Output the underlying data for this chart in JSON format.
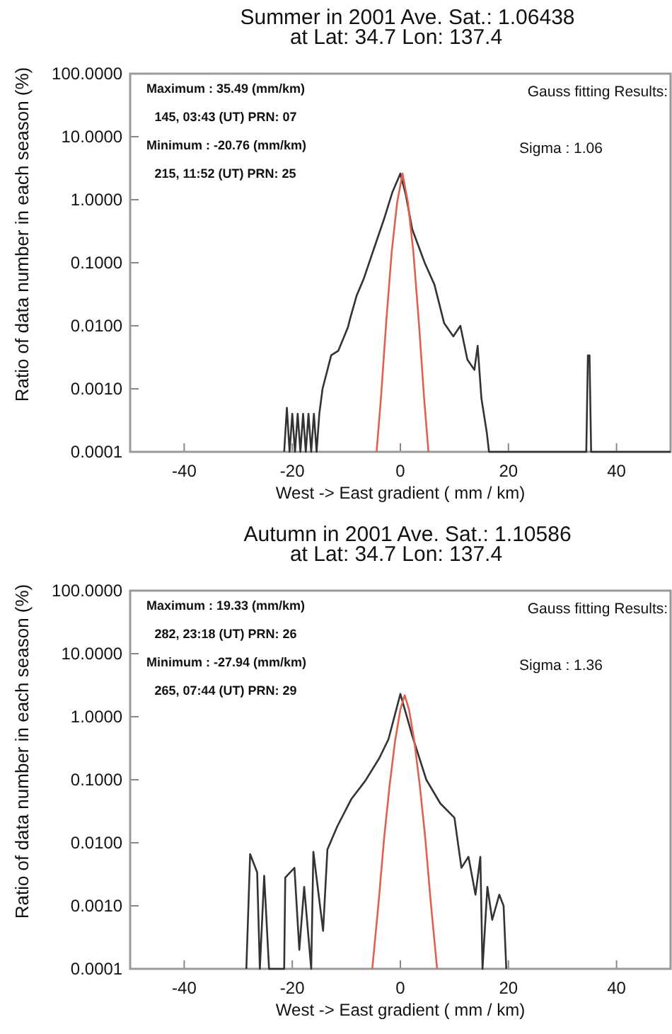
{
  "chart_data": [
    {
      "type": "line",
      "title": "Summer  in 2001  Ave. Sat.: 1.06438",
      "subtitle": "at  Lat:  34.7  Lon: 137.4",
      "xlabel": "West -> East  gradient ( mm / km)",
      "ylabel": "Ratio of data number in each season (%)",
      "log": "y",
      "xlim": [
        -50,
        50
      ],
      "xticks": [
        -40,
        -20,
        0,
        20,
        40
      ],
      "ylim": [
        0.0001,
        100
      ],
      "yticks": [
        {
          "value": 100,
          "label": "100.0000"
        },
        {
          "value": 10,
          "label": "10.0000"
        },
        {
          "value": 1,
          "label": "1.0000"
        },
        {
          "value": 0.1,
          "label": "0.1000"
        },
        {
          "value": 0.01,
          "label": "0.0100"
        },
        {
          "value": 0.001,
          "label": "0.0010"
        },
        {
          "value": 0.0001,
          "label": "0.0001"
        }
      ],
      "annotations": [
        "Maximum : 35.49 (mm/km)",
        "145, 03:43 (UT) PRN: 07",
        "Minimum : -20.76 (mm/km)",
        "215, 11:52 (UT) PRN: 25",
        "Gauss fitting Results:",
        "Sigma : 1.06"
      ],
      "series": [
        {
          "color": "#333333",
          "x": [
            -21.5,
            -21,
            -20.5,
            -20,
            -19.5,
            -19,
            -18.5,
            -18,
            -17.5,
            -17,
            -16.5,
            -16,
            -15.5,
            -15,
            -14.4,
            -12.8,
            -11.5,
            -9.7,
            -9.3,
            -8.1,
            -6.8,
            -5.2,
            -3,
            -1.5,
            0,
            1,
            2.2,
            4.5,
            6.3,
            8.1,
            9.8,
            11.1,
            12.4,
            13.7,
            14.3,
            15,
            16,
            16.4,
            34.4,
            34.7,
            35,
            35.3,
            50
          ],
          "values": [
            0.0001,
            0.0005,
            0.0001,
            0.0004,
            0.0001,
            0.0004,
            0.0001,
            0.0004,
            0.0001,
            0.0004,
            0.0001,
            0.0004,
            0.0001,
            0.0004,
            0.001,
            0.0034,
            0.004,
            0.0095,
            0.013,
            0.03,
            0.055,
            0.14,
            0.5,
            1.3,
            2.6,
            1.2,
            0.34,
            0.1,
            0.045,
            0.011,
            0.0068,
            0.01,
            0.0029,
            0.002,
            0.0048,
            0.0007,
            0.0002,
            0.0001,
            0.0001,
            0.0034,
            0.0034,
            0.0001,
            0.0001
          ]
        },
        {
          "color": "#e06050",
          "x": [
            -4.4,
            -3.6,
            -2.6,
            -1.6,
            -0.6,
            0.4,
            1.4,
            2.4,
            3.4,
            4.4,
            5.2
          ],
          "values": [
            0.0001,
            0.0007,
            0.012,
            0.15,
            0.9,
            2.6,
            0.9,
            0.15,
            0.012,
            0.0007,
            0.0001
          ]
        }
      ]
    },
    {
      "type": "line",
      "title": "Autumn  in 2001  Ave. Sat.: 1.10586",
      "subtitle": "at  Lat:  34.7  Lon: 137.4",
      "xlabel": "West -> East  gradient ( mm / km)",
      "ylabel": "Ratio of data number in each season (%)",
      "log": "y",
      "xlim": [
        -50,
        50
      ],
      "xticks": [
        -40,
        -20,
        0,
        20,
        40
      ],
      "ylim": [
        0.0001,
        100
      ],
      "yticks": [
        {
          "value": 100,
          "label": "100.0000"
        },
        {
          "value": 10,
          "label": "10.0000"
        },
        {
          "value": 1,
          "label": "1.0000"
        },
        {
          "value": 0.1,
          "label": "0.1000"
        },
        {
          "value": 0.01,
          "label": "0.0100"
        },
        {
          "value": 0.001,
          "label": "0.0010"
        },
        {
          "value": 0.0001,
          "label": "0.0001"
        }
      ],
      "annotations": [
        "Maximum : 19.33 (mm/km)",
        "282, 23:18 (UT) PRN: 26",
        "Minimum : -27.94 (mm/km)",
        "265, 07:44 (UT) PRN: 29",
        "Gauss fitting Results:",
        "Sigma : 1.36"
      ],
      "series": [
        {
          "color": "#333333",
          "x": [
            -28.5,
            -27.8,
            -26.5,
            -26,
            -25.2,
            -24.3,
            -21.5,
            -21.3,
            -19.6,
            -18.7,
            -17.8,
            -16.5,
            -16.1,
            -14.3,
            -13.5,
            -11.7,
            -9.1,
            -6.5,
            -3.9,
            -2.2,
            0,
            2.2,
            4.8,
            7.4,
            10,
            11.3,
            12.6,
            13.9,
            14.8,
            15.2,
            16.1,
            17,
            18.3,
            19.1,
            19.6
          ],
          "values": [
            0.0001,
            0.0066,
            0.0034,
            0.0001,
            0.003,
            0.0001,
            0.0001,
            0.0028,
            0.004,
            0.0002,
            0.002,
            0.0001,
            0.0072,
            0.0004,
            0.0078,
            0.018,
            0.049,
            0.096,
            0.22,
            0.44,
            2.3,
            0.5,
            0.1,
            0.042,
            0.025,
            0.004,
            0.006,
            0.0015,
            0.006,
            0.0001,
            0.002,
            0.0006,
            0.0015,
            0.001,
            0.0001
          ]
        },
        {
          "color": "#e06050",
          "x": [
            -5.2,
            -4,
            -3,
            -2,
            -1,
            0,
            0.8,
            1.6,
            2.6,
            3.6,
            4.6,
            5.6,
            6.8
          ],
          "values": [
            0.0001,
            0.0012,
            0.012,
            0.08,
            0.4,
            1.3,
            2.2,
            1.3,
            0.4,
            0.08,
            0.012,
            0.0012,
            0.0001
          ]
        }
      ]
    }
  ]
}
